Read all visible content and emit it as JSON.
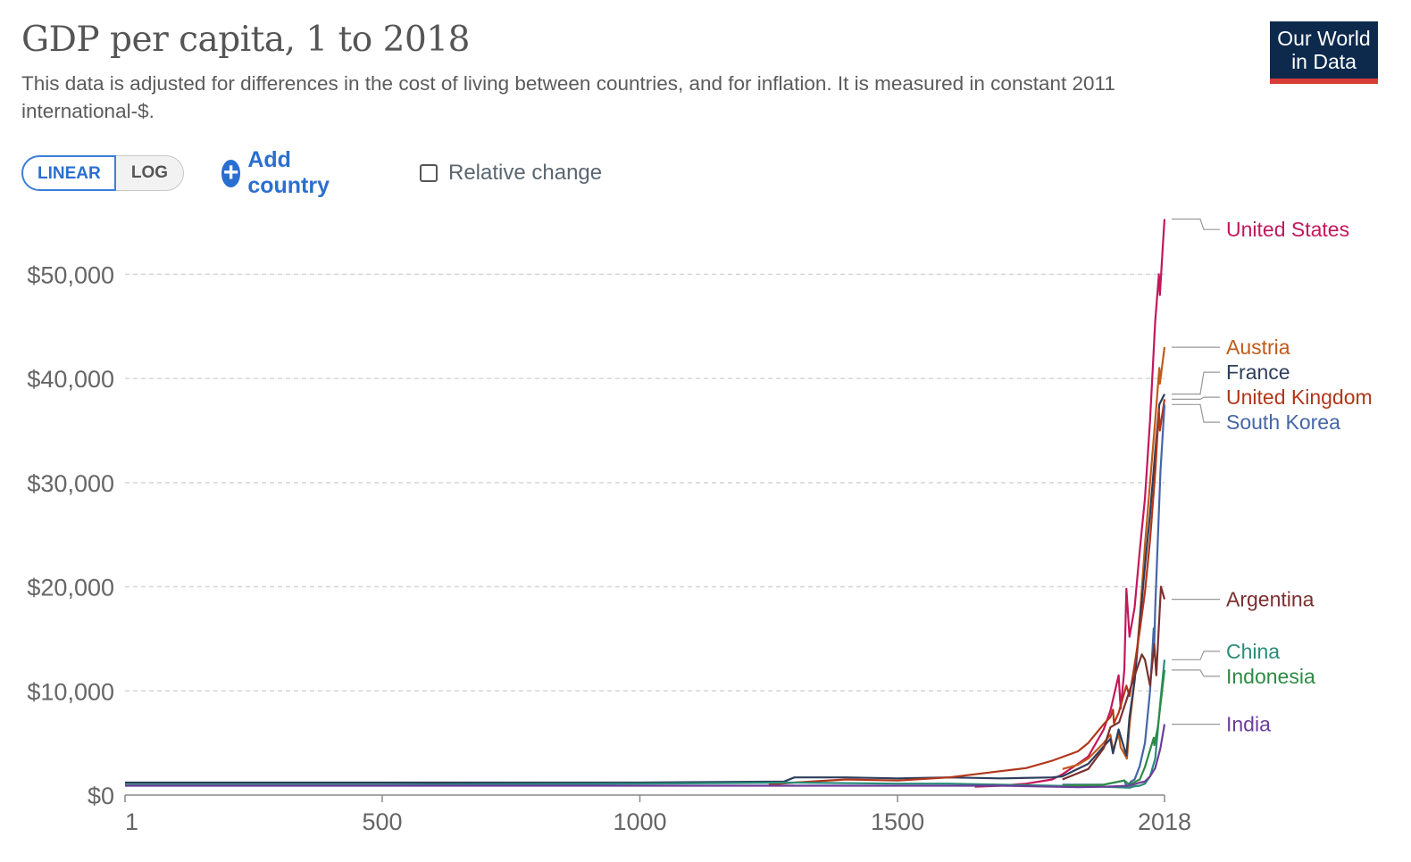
{
  "header": {
    "title": "GDP per capita, 1 to 2018",
    "subtitle": "This data is adjusted for differences in the cost of living between countries, and for inflation. It is measured in constant 2011 international-$.",
    "logo_line1": "Our World",
    "logo_line2": "in Data"
  },
  "controls": {
    "linear_label": "LINEAR",
    "log_label": "LOG",
    "add_country_label": "Add country",
    "relative_change_label": "Relative change"
  },
  "chart_data": {
    "type": "line",
    "title": "GDP per capita, 1 to 2018",
    "xlabel": "",
    "ylabel": "",
    "xlim": [
      1,
      2018
    ],
    "ylim": [
      0,
      55000
    ],
    "x_ticks": [
      {
        "value": 1,
        "label": "1"
      },
      {
        "value": 500,
        "label": "500"
      },
      {
        "value": 1000,
        "label": "1000"
      },
      {
        "value": 1500,
        "label": "1500"
      },
      {
        "value": 2018,
        "label": "2018"
      }
    ],
    "y_ticks": [
      {
        "value": 0,
        "label": "$0"
      },
      {
        "value": 10000,
        "label": "$10,000"
      },
      {
        "value": 20000,
        "label": "$20,000"
      },
      {
        "value": 30000,
        "label": "$30,000"
      },
      {
        "value": 40000,
        "label": "$40,000"
      },
      {
        "value": 50000,
        "label": "$50,000"
      }
    ],
    "series": [
      {
        "name": "United States",
        "color": "#c2185b",
        "points": [
          [
            1650,
            800
          ],
          [
            1700,
            900
          ],
          [
            1750,
            1100
          ],
          [
            1800,
            1500
          ],
          [
            1820,
            2000
          ],
          [
            1850,
            3000
          ],
          [
            1870,
            3700
          ],
          [
            1900,
            6300
          ],
          [
            1913,
            8100
          ],
          [
            1929,
            11500
          ],
          [
            1933,
            8300
          ],
          [
            1940,
            12000
          ],
          [
            1944,
            19800
          ],
          [
            1950,
            15200
          ],
          [
            1960,
            18000
          ],
          [
            1970,
            23500
          ],
          [
            1980,
            28500
          ],
          [
            1990,
            36000
          ],
          [
            2000,
            45500
          ],
          [
            2007,
            50000
          ],
          [
            2009,
            48000
          ],
          [
            2015,
            53000
          ],
          [
            2018,
            55300
          ]
        ]
      },
      {
        "name": "Austria",
        "color": "#c15a1a",
        "points": [
          [
            1820,
            2500
          ],
          [
            1850,
            2900
          ],
          [
            1870,
            3500
          ],
          [
            1900,
            5000
          ],
          [
            1913,
            5800
          ],
          [
            1918,
            4300
          ],
          [
            1929,
            5900
          ],
          [
            1933,
            4600
          ],
          [
            1945,
            3500
          ],
          [
            1950,
            6700
          ],
          [
            1960,
            11000
          ],
          [
            1970,
            17000
          ],
          [
            1980,
            24000
          ],
          [
            1990,
            30000
          ],
          [
            2000,
            36000
          ],
          [
            2008,
            41000
          ],
          [
            2009,
            39500
          ],
          [
            2018,
            43000
          ]
        ]
      },
      {
        "name": "France",
        "color": "#2d3e5c",
        "points": [
          [
            1,
            1200
          ],
          [
            500,
            1200
          ],
          [
            1000,
            1200
          ],
          [
            1280,
            1300
          ],
          [
            1300,
            1700
          ],
          [
            1400,
            1700
          ],
          [
            1500,
            1600
          ],
          [
            1600,
            1700
          ],
          [
            1700,
            1600
          ],
          [
            1800,
            1700
          ],
          [
            1820,
            1800
          ],
          [
            1870,
            3000
          ],
          [
            1913,
            5400
          ],
          [
            1918,
            4000
          ],
          [
            1929,
            6300
          ],
          [
            1944,
            3800
          ],
          [
            1950,
            7500
          ],
          [
            1960,
            11000
          ],
          [
            1970,
            16500
          ],
          [
            1980,
            22000
          ],
          [
            1990,
            27000
          ],
          [
            2000,
            33000
          ],
          [
            2008,
            37500
          ],
          [
            2018,
            38500
          ]
        ]
      },
      {
        "name": "United Kingdom",
        "color": "#b1361b",
        "points": [
          [
            1250,
            1000
          ],
          [
            1300,
            1200
          ],
          [
            1400,
            1500
          ],
          [
            1500,
            1400
          ],
          [
            1600,
            1700
          ],
          [
            1700,
            2300
          ],
          [
            1750,
            2600
          ],
          [
            1800,
            3300
          ],
          [
            1850,
            4200
          ],
          [
            1870,
            5000
          ],
          [
            1900,
            6800
          ],
          [
            1913,
            7500
          ],
          [
            1918,
            8200
          ],
          [
            1920,
            6900
          ],
          [
            1929,
            7900
          ],
          [
            1944,
            10500
          ],
          [
            1950,
            9500
          ],
          [
            1960,
            12500
          ],
          [
            1970,
            15800
          ],
          [
            1980,
            19500
          ],
          [
            1990,
            24500
          ],
          [
            2000,
            31000
          ],
          [
            2007,
            37000
          ],
          [
            2009,
            35000
          ],
          [
            2018,
            38000
          ]
        ]
      },
      {
        "name": "South Korea",
        "color": "#4466a6",
        "points": [
          [
            1820,
            1000
          ],
          [
            1900,
            1000
          ],
          [
            1940,
            1400
          ],
          [
            1945,
            800
          ],
          [
            1953,
            1300
          ],
          [
            1960,
            1500
          ],
          [
            1970,
            2800
          ],
          [
            1980,
            5000
          ],
          [
            1990,
            10000
          ],
          [
            1997,
            16000
          ],
          [
            1998,
            14500
          ],
          [
            2000,
            18000
          ],
          [
            2010,
            31000
          ],
          [
            2018,
            37500
          ]
        ]
      },
      {
        "name": "Argentina",
        "color": "#7c2f2f",
        "points": [
          [
            1820,
            1500
          ],
          [
            1870,
            2500
          ],
          [
            1900,
            4500
          ],
          [
            1913,
            6500
          ],
          [
            1930,
            7000
          ],
          [
            1950,
            10000
          ],
          [
            1974,
            13500
          ],
          [
            1980,
            13000
          ],
          [
            1990,
            10500
          ],
          [
            1998,
            14500
          ],
          [
            2002,
            11500
          ],
          [
            2011,
            20000
          ],
          [
            2018,
            18800
          ]
        ]
      },
      {
        "name": "China",
        "color": "#2a8c7a",
        "points": [
          [
            1,
            1000
          ],
          [
            500,
            1000
          ],
          [
            1000,
            1100
          ],
          [
            1300,
            1200
          ],
          [
            1400,
            1150
          ],
          [
            1500,
            1100
          ],
          [
            1600,
            1100
          ],
          [
            1700,
            1000
          ],
          [
            1800,
            900
          ],
          [
            1850,
            850
          ],
          [
            1900,
            800
          ],
          [
            1950,
            700
          ],
          [
            1960,
            850
          ],
          [
            1970,
            900
          ],
          [
            1980,
            1100
          ],
          [
            1990,
            1800
          ],
          [
            2000,
            3500
          ],
          [
            2010,
            9000
          ],
          [
            2018,
            13000
          ]
        ]
      },
      {
        "name": "Indonesia",
        "color": "#2e8b45",
        "points": [
          [
            1820,
            900
          ],
          [
            1900,
            1000
          ],
          [
            1940,
            1400
          ],
          [
            1950,
            1000
          ],
          [
            1970,
            1500
          ],
          [
            1980,
            2700
          ],
          [
            1997,
            5500
          ],
          [
            1998,
            4800
          ],
          [
            2005,
            6500
          ],
          [
            2018,
            12000
          ]
        ]
      },
      {
        "name": "India",
        "color": "#6a3d9a",
        "points": [
          [
            1,
            900
          ],
          [
            1000,
            900
          ],
          [
            1500,
            900
          ],
          [
            1700,
            900
          ],
          [
            1850,
            750
          ],
          [
            1900,
            800
          ],
          [
            1950,
            900
          ],
          [
            1970,
            1200
          ],
          [
            1980,
            1300
          ],
          [
            1990,
            1800
          ],
          [
            2000,
            2600
          ],
          [
            2010,
            4500
          ],
          [
            2018,
            6800
          ]
        ]
      }
    ],
    "legend": [
      {
        "name": "United States",
        "color": "#c2185b",
        "anchor_value": 55300,
        "label_value": 54300
      },
      {
        "name": "Austria",
        "color": "#c15a1a",
        "anchor_value": 43000,
        "label_value": 43000
      },
      {
        "name": "France",
        "color": "#2d3e5c",
        "anchor_value": 38500,
        "label_value": 40600
      },
      {
        "name": "United Kingdom",
        "color": "#b1361b",
        "anchor_value": 38000,
        "label_value": 38200
      },
      {
        "name": "South Korea",
        "color": "#4466a6",
        "anchor_value": 37500,
        "label_value": 35800
      },
      {
        "name": "Argentina",
        "color": "#7c2f2f",
        "anchor_value": 18800,
        "label_value": 18800
      },
      {
        "name": "China",
        "color": "#2a8c7a",
        "anchor_value": 13000,
        "label_value": 13800
      },
      {
        "name": "Indonesia",
        "color": "#2e8b45",
        "anchor_value": 12000,
        "label_value": 11400
      },
      {
        "name": "India",
        "color": "#6a3d9a",
        "anchor_value": 6800,
        "label_value": 6800
      }
    ]
  }
}
